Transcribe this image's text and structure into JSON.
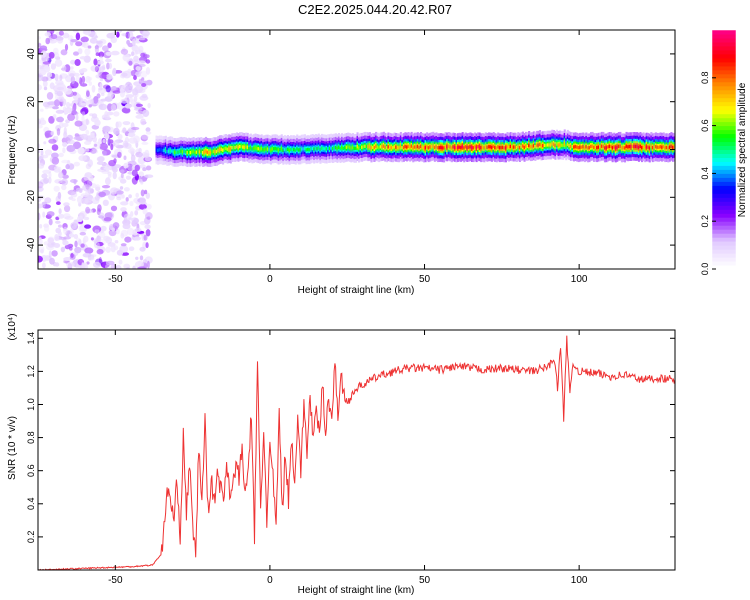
{
  "chart_data": [
    {
      "type": "heatmap",
      "title": "C2E2.2025.044.20.42.R07",
      "xlabel": "Height of straight line (km)",
      "ylabel": "Frequency (Hz)",
      "xlim": [
        -75,
        131
      ],
      "ylim": [
        -50,
        50
      ],
      "xticks": [
        -50,
        0,
        50,
        100
      ],
      "xtick_labels": [
        "-50",
        "0",
        "50",
        "100"
      ],
      "yticks": [
        -40,
        -20,
        0,
        20,
        40
      ],
      "ytick_labels": [
        "-40",
        "-20",
        "0",
        "20",
        "40"
      ],
      "colorbar": {
        "label": "Normalized spectral amplitude",
        "range": [
          0,
          1
        ],
        "ticks": [
          0,
          0.2,
          0.4,
          0.6,
          0.8
        ],
        "tick_labels": [
          "0.0",
          "0.2",
          "0.4",
          "0.6",
          "0.8"
        ],
        "colors": [
          "#ffffff",
          "#e0c8ff",
          "#8800ff",
          "#0000ff",
          "#00ffff",
          "#00ff00",
          "#ffff00",
          "#ff8800",
          "#ff0000",
          "#ff0080"
        ]
      },
      "noise_region": {
        "x": [
          -75,
          -39
        ],
        "level": 0.15
      },
      "ridge": [
        {
          "x": -37,
          "y": 0,
          "amp": 0.35
        },
        {
          "x": -30,
          "y": -1,
          "amp": 0.55
        },
        {
          "x": -20,
          "y": -1,
          "amp": 0.7
        },
        {
          "x": -10,
          "y": 1,
          "amp": 0.65
        },
        {
          "x": 0,
          "y": 0,
          "amp": 0.55
        },
        {
          "x": 10,
          "y": 0,
          "amp": 0.5
        },
        {
          "x": 20,
          "y": 0.5,
          "amp": 0.5
        },
        {
          "x": 30,
          "y": 1,
          "amp": 0.65
        },
        {
          "x": 40,
          "y": 1,
          "amp": 0.75
        },
        {
          "x": 50,
          "y": 1,
          "amp": 0.82
        },
        {
          "x": 60,
          "y": 1,
          "amp": 0.85
        },
        {
          "x": 70,
          "y": 1,
          "amp": 0.85
        },
        {
          "x": 80,
          "y": 1,
          "amp": 0.8
        },
        {
          "x": 90,
          "y": 2,
          "amp": 0.72
        },
        {
          "x": 95,
          "y": 2,
          "amp": 0.65
        },
        {
          "x": 100,
          "y": 1,
          "amp": 0.8
        },
        {
          "x": 110,
          "y": 1,
          "amp": 0.85
        },
        {
          "x": 120,
          "y": 1,
          "amp": 0.85
        },
        {
          "x": 131,
          "y": 1,
          "amp": 0.8
        }
      ]
    },
    {
      "type": "line",
      "xlabel": "Height of straight line (km)",
      "ylabel": "SNR (10 * v/v)",
      "y_multiplier_label": "(x10⁴)",
      "xlim": [
        -75,
        131
      ],
      "ylim": [
        0,
        1.45
      ],
      "xticks": [
        -50,
        0,
        50,
        100
      ],
      "xtick_labels": [
        "-50",
        "0",
        "50",
        "100"
      ],
      "yticks": [
        0.2,
        0.4,
        0.6,
        0.8,
        1.0,
        1.2,
        1.4
      ],
      "ytick_labels": [
        "0.2",
        "0.4",
        "0.6",
        "0.8",
        "1.0",
        "1.2",
        "1.4"
      ],
      "series": [
        {
          "color": "#ee3333",
          "x": [
            -75,
            -60,
            -45,
            -38,
            -35,
            -33,
            -31,
            -30,
            -29,
            -28,
            -27,
            -26,
            -25,
            -24,
            -23,
            -22,
            -21,
            -20,
            -19,
            -18,
            -17,
            -16,
            -15,
            -14,
            -13,
            -12,
            -11,
            -10,
            -9,
            -8,
            -7,
            -6,
            -5,
            -4,
            -3,
            -2,
            -1,
            0,
            1,
            2,
            3,
            4,
            5,
            6,
            7,
            8,
            9,
            10,
            11,
            12,
            13,
            14,
            15,
            16,
            17,
            18,
            19,
            20,
            21,
            22,
            23,
            25,
            27,
            30,
            35,
            40,
            45,
            50,
            55,
            60,
            65,
            70,
            75,
            80,
            85,
            90,
            92,
            93,
            94,
            95,
            96,
            97,
            98,
            100,
            105,
            110,
            115,
            120,
            125,
            131
          ],
          "y": [
            0.0,
            0.01,
            0.02,
            0.03,
            0.1,
            0.5,
            0.3,
            0.55,
            0.2,
            0.8,
            0.35,
            0.65,
            0.25,
            0.1,
            0.75,
            0.4,
            0.9,
            0.35,
            0.55,
            0.4,
            0.6,
            0.5,
            0.42,
            0.66,
            0.48,
            0.5,
            0.65,
            0.55,
            0.75,
            0.42,
            0.62,
            0.95,
            0.2,
            1.25,
            0.35,
            0.85,
            0.3,
            0.75,
            0.55,
            0.25,
            0.95,
            0.35,
            0.72,
            0.42,
            0.8,
            0.55,
            0.92,
            0.6,
            1.0,
            0.72,
            1.05,
            0.78,
            0.95,
            0.82,
            1.12,
            0.85,
            1.05,
            0.9,
            1.25,
            0.95,
            1.15,
            1.0,
            1.08,
            1.12,
            1.17,
            1.2,
            1.22,
            1.22,
            1.21,
            1.23,
            1.22,
            1.21,
            1.22,
            1.21,
            1.2,
            1.23,
            1.28,
            1.1,
            1.35,
            0.92,
            1.42,
            1.05,
            1.25,
            1.2,
            1.19,
            1.17,
            1.18,
            1.15,
            1.16,
            1.15
          ]
        }
      ]
    }
  ]
}
